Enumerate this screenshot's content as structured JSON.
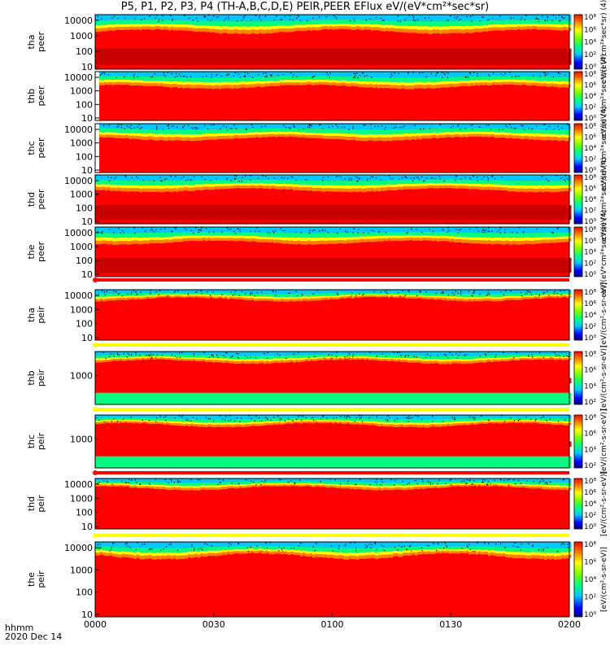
{
  "chart_data": {
    "type": "heatmap",
    "title": "P5, P1, P2, P3, P4 (TH-A,B,C,D,E) PEIR,PEER EFlux eV/(eV*cm²*sec*sr)",
    "x_ticks": [
      "0000",
      "0030",
      "0100",
      "0130",
      "0200"
    ],
    "x_label_line1": "hhmm",
    "x_label_line2": "2020 Dec 14",
    "colorbar_ticks_peer": [
      "10⁰",
      "10²",
      "10⁴",
      "10⁶",
      "10⁸"
    ],
    "colorbar_ticks_peir": [
      "10⁰",
      "10²",
      "10⁴",
      "10⁶",
      "10⁸"
    ],
    "colorbar_ticks_short": [
      "10²",
      "10⁴",
      "10⁶",
      "10⁸"
    ],
    "colorbar_label_peer": "eV/(eV*cm²*sec*sr) (4)",
    "colorbar_label_peir": "[eV/(cm²-s-sr-eV)]",
    "panels": [
      {
        "id": "tha-peer",
        "probe": "tha",
        "species": "peer",
        "y_ticks": [
          "10000",
          "1000",
          "100",
          "10"
        ]
      },
      {
        "id": "thb-peer",
        "probe": "thb",
        "species": "peer",
        "y_ticks": [
          "10000",
          "1000",
          "100",
          "10"
        ]
      },
      {
        "id": "thc-peer",
        "probe": "thc",
        "species": "peer",
        "y_ticks": [
          "10000",
          "1000",
          "100",
          "10"
        ]
      },
      {
        "id": "thd-peer",
        "probe": "thd",
        "species": "peer",
        "y_ticks": [
          "10000",
          "1000",
          "100",
          "10"
        ]
      },
      {
        "id": "the-peer",
        "probe": "the",
        "species": "peer",
        "y_ticks": [
          "10000",
          "1000",
          "100",
          "10"
        ]
      },
      {
        "id": "tha-peir",
        "probe": "tha",
        "species": "peir",
        "y_ticks": [
          "10000",
          "1000",
          "100",
          "10"
        ]
      },
      {
        "id": "thb-peir",
        "probe": "thb",
        "species": "peir",
        "y_ticks": [
          "1000"
        ]
      },
      {
        "id": "thc-peir",
        "probe": "thc",
        "species": "peir",
        "y_ticks": [
          "1000"
        ]
      },
      {
        "id": "thd-peir",
        "probe": "thd",
        "species": "peir",
        "y_ticks": [
          "10000",
          "1000",
          "100",
          "10"
        ]
      },
      {
        "id": "the-peir",
        "probe": "the",
        "species": "peir",
        "y_ticks": [
          "10000",
          "1000",
          "100",
          "10"
        ]
      }
    ],
    "colors": {
      "bar_red": "#ff0000",
      "bar_yellow": "#ffff00",
      "saturated": "#c80000"
    }
  }
}
